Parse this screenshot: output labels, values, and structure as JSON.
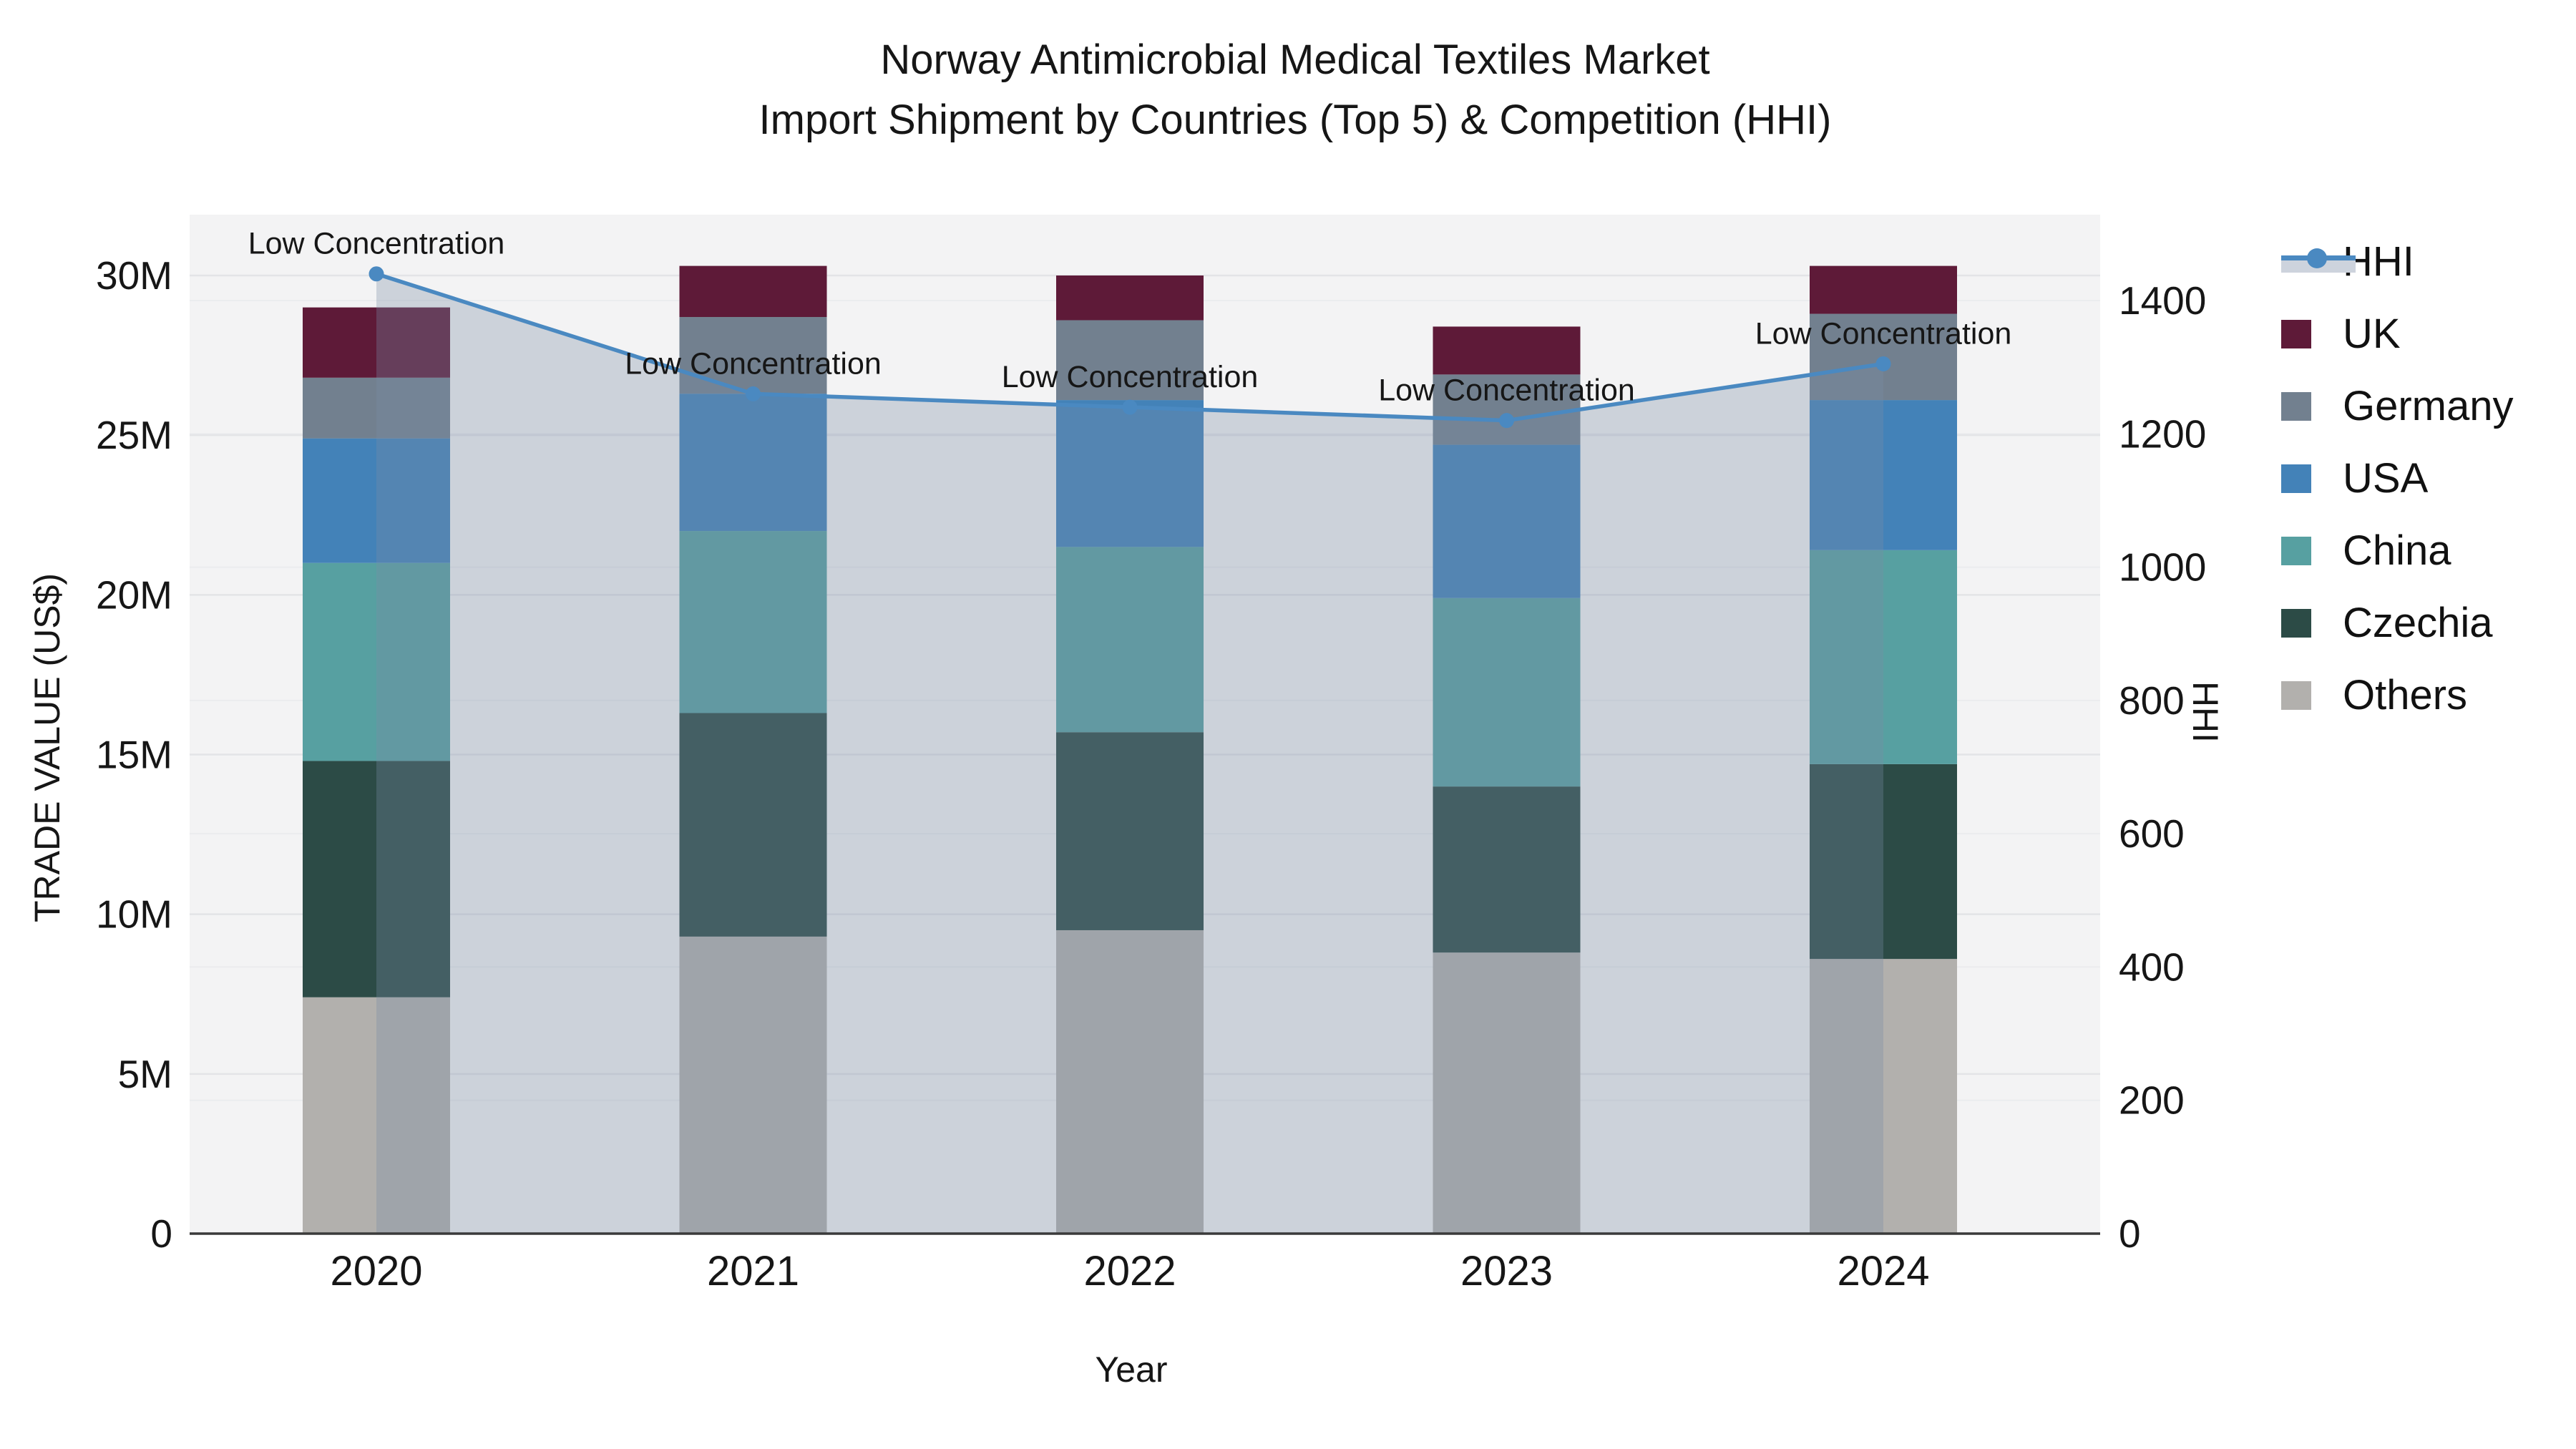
{
  "title": {
    "line1": "Norway Antimicrobial Medical Textiles Market",
    "line2": "Import Shipment by Countries (Top 5) & Competition (HHI)"
  },
  "x_axis": {
    "title": "Year",
    "ticks": [
      "2020",
      "2021",
      "2022",
      "2023",
      "2024"
    ]
  },
  "y_left_axis": {
    "title": "TRADE VALUE (US$)",
    "ticks": [
      "0",
      "5M",
      "10M",
      "15M",
      "20M",
      "25M",
      "30M"
    ]
  },
  "y_right_axis": {
    "title": "HHI",
    "ticks": [
      "0",
      "200",
      "400",
      "600",
      "800",
      "1000",
      "1200",
      "1400"
    ]
  },
  "legend": {
    "items": [
      "HHI",
      "UK",
      "Germany",
      "USA",
      "China",
      "Czechia",
      "Others"
    ]
  },
  "annotation_text": "Low Concentration",
  "colors": {
    "hhi_line": "#4a89c1",
    "area_fill": "rgba(120,140,165,0.32)",
    "plot_bg": "#f3f3f4",
    "grid_major": "#e3e4e7",
    "grid_minor": "#ebecee",
    "axis_line": "#3a3a3a",
    "uk": "#5e1a38",
    "germany": "#72808f",
    "usa": "#4382b8",
    "china": "#57a0a1",
    "czechia": "#2c4b46",
    "others": "#b2b0ad"
  },
  "chart_data": {
    "type": "bar",
    "subtype": "stacked-bars-with-line-overlay",
    "title": "Norway Antimicrobial Medical Textiles Market — Import Shipment by Countries (Top 5) & Competition (HHI)",
    "categories": [
      "2020",
      "2021",
      "2022",
      "2023",
      "2024"
    ],
    "series": [
      {
        "name": "Others",
        "color": "#b2b0ad",
        "values": [
          7.4,
          9.3,
          9.5,
          8.8,
          8.6
        ]
      },
      {
        "name": "Czechia",
        "color": "#2c4b46",
        "values": [
          7.4,
          7.0,
          6.2,
          5.2,
          6.1
        ]
      },
      {
        "name": "China",
        "color": "#57a0a1",
        "values": [
          6.2,
          5.7,
          5.8,
          5.9,
          6.7
        ]
      },
      {
        "name": "USA",
        "color": "#4382b8",
        "values": [
          3.9,
          4.3,
          4.6,
          4.8,
          4.7
        ]
      },
      {
        "name": "Germany",
        "color": "#72808f",
        "values": [
          1.9,
          2.4,
          2.5,
          2.2,
          2.7
        ]
      },
      {
        "name": "UK",
        "color": "#5e1a38",
        "values": [
          2.2,
          1.6,
          1.4,
          1.5,
          1.5
        ]
      }
    ],
    "stack_totals": [
      29.0,
      30.3,
      30.0,
      28.4,
      30.3
    ],
    "line_series": {
      "name": "HHI",
      "color": "#4a89c1",
      "axis": "right",
      "values": [
        1440,
        1260,
        1240,
        1220,
        1305
      ],
      "area_fill": true,
      "point_annotations": [
        "Low Concentration",
        "Low Concentration",
        "Low Concentration",
        "Low Concentration",
        "Low Concentration"
      ]
    },
    "xlabel": "Year",
    "ylabel": "TRADE VALUE (US$)",
    "ylabel_right": "HHI",
    "units_left": "millions of US$",
    "ylim_left": [
      0,
      31.9
    ],
    "ylim_right": [
      0,
      1529
    ],
    "ytick_step_left": 5000000,
    "ytick_step_right": 200,
    "grid": true,
    "legend_position": "right-outside",
    "stack_order": "bottom-to-top: Others, Czechia, China, USA, Germany, UK"
  }
}
